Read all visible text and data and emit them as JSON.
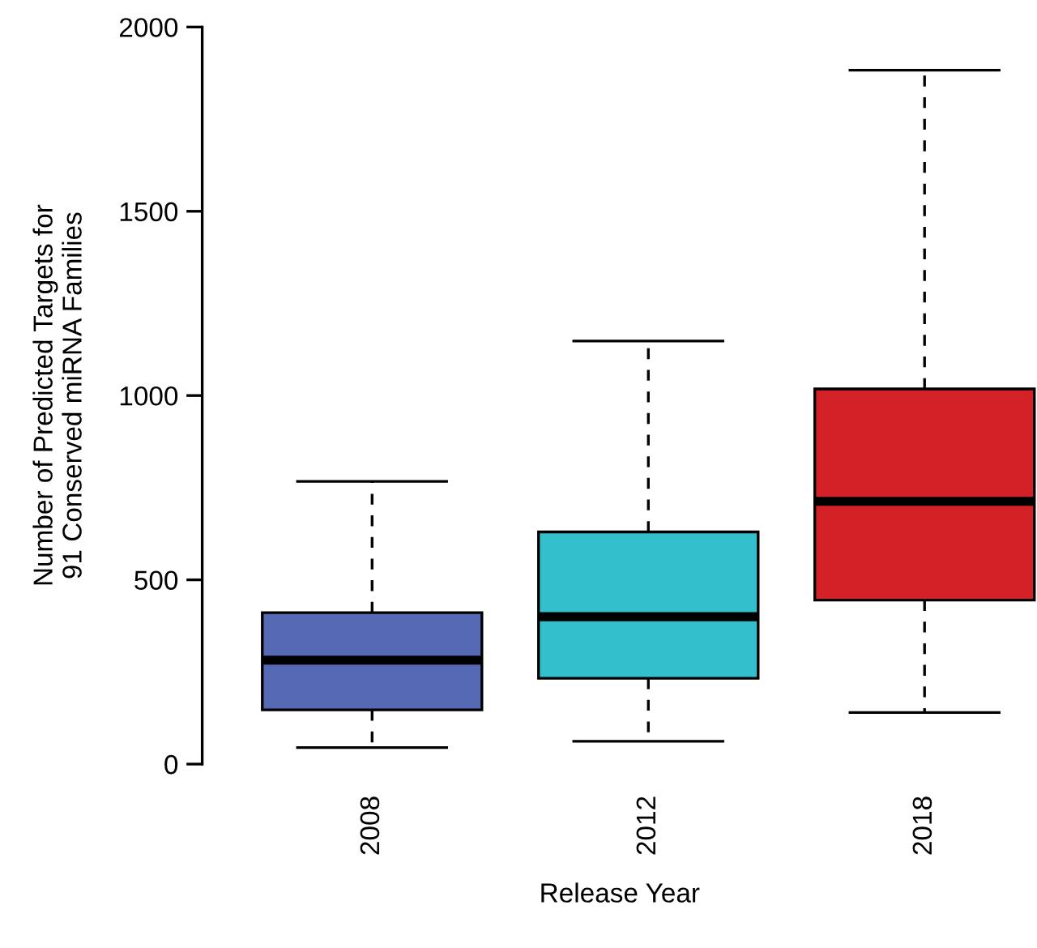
{
  "chart_data": {
    "type": "box",
    "xlabel": "Release Year",
    "ylabel": "Number of Predicted Targets for\n91 Conserved miRNA Families",
    "categories": [
      "2008",
      "2012",
      "2018"
    ],
    "colors": [
      "#5669b4",
      "#33c0cc",
      "#d42027"
    ],
    "boxes": [
      {
        "low": 45,
        "q1": 147,
        "median": 282,
        "q3": 411,
        "high": 767
      },
      {
        "low": 62,
        "q1": 233,
        "median": 400,
        "q3": 630,
        "high": 1148
      },
      {
        "low": 140,
        "q1": 445,
        "median": 713,
        "q3": 1018,
        "high": 1883
      }
    ],
    "ylim": [
      0,
      2000
    ],
    "yticks": [
      0,
      500,
      1000,
      1500,
      2000
    ],
    "grid": false
  }
}
